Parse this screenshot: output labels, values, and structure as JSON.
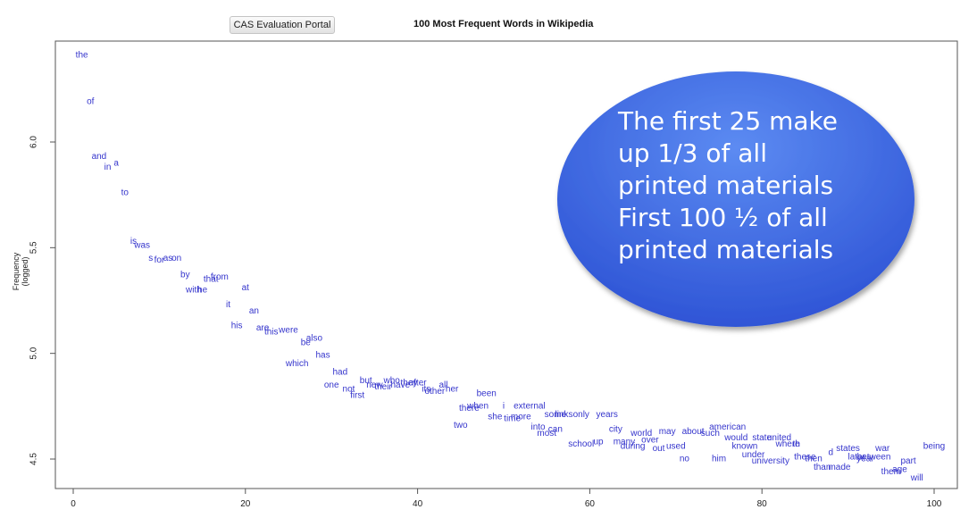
{
  "toolbar": {
    "portal_label": "CAS Evaluation Portal"
  },
  "callout": {
    "lines": [
      "The first 25 make",
      "up 1/3 of all",
      "printed materials",
      "First 100 ½ of all",
      "printed materials"
    ],
    "fill_color": "#2f55d6"
  },
  "chart_data": {
    "type": "scatter",
    "title": "100 Most Frequent Words in Wikipedia",
    "xlabel": "",
    "ylabel": "Frequency (logged)",
    "xlim": [
      0,
      100
    ],
    "ylim": [
      4.45,
      6.45
    ],
    "xticks": [
      0,
      20,
      40,
      60,
      80,
      100
    ],
    "yticks": [
      4.5,
      5.0,
      5.5,
      6.0
    ],
    "grid": false,
    "label_color": "#3535cc",
    "points": [
      {
        "w": "the",
        "x": 1,
        "y": 6.41
      },
      {
        "w": "of",
        "x": 2,
        "y": 6.19
      },
      {
        "w": "and",
        "x": 3,
        "y": 5.93
      },
      {
        "w": "in",
        "x": 4,
        "y": 5.88
      },
      {
        "w": "a",
        "x": 5,
        "y": 5.9
      },
      {
        "w": "to",
        "x": 6,
        "y": 5.76
      },
      {
        "w": "is",
        "x": 7,
        "y": 5.53
      },
      {
        "w": "was",
        "x": 8,
        "y": 5.51
      },
      {
        "w": "s",
        "x": 9,
        "y": 5.45
      },
      {
        "w": "for",
        "x": 10,
        "y": 5.44
      },
      {
        "w": "as",
        "x": 11,
        "y": 5.45
      },
      {
        "w": "on",
        "x": 12,
        "y": 5.45
      },
      {
        "w": "by",
        "x": 13,
        "y": 5.37
      },
      {
        "w": "with",
        "x": 14,
        "y": 5.3
      },
      {
        "w": "he",
        "x": 15,
        "y": 5.3
      },
      {
        "w": "that",
        "x": 16,
        "y": 5.35
      },
      {
        "w": "from",
        "x": 17,
        "y": 5.36
      },
      {
        "w": "it",
        "x": 18,
        "y": 5.23
      },
      {
        "w": "at",
        "x": 20,
        "y": 5.31
      },
      {
        "w": "his",
        "x": 19,
        "y": 5.13
      },
      {
        "w": "an",
        "x": 21,
        "y": 5.2
      },
      {
        "w": "are",
        "x": 22,
        "y": 5.12
      },
      {
        "w": "this",
        "x": 23,
        "y": 5.1
      },
      {
        "w": "were",
        "x": 25,
        "y": 5.11
      },
      {
        "w": "be",
        "x": 27,
        "y": 5.05
      },
      {
        "w": "also",
        "x": 28,
        "y": 5.07
      },
      {
        "w": "which",
        "x": 26,
        "y": 4.95
      },
      {
        "w": "has",
        "x": 29,
        "y": 4.99
      },
      {
        "w": "had",
        "x": 31,
        "y": 4.91
      },
      {
        "w": "one",
        "x": 30,
        "y": 4.85
      },
      {
        "w": "not",
        "x": 32,
        "y": 4.83
      },
      {
        "w": "first",
        "x": 33,
        "y": 4.8
      },
      {
        "w": "but",
        "x": 34,
        "y": 4.87
      },
      {
        "w": "new",
        "x": 35,
        "y": 4.85
      },
      {
        "w": "their",
        "x": 36,
        "y": 4.84
      },
      {
        "w": "who",
        "x": 37,
        "y": 4.87
      },
      {
        "w": "have",
        "x": 38,
        "y": 4.85
      },
      {
        "w": "they",
        "x": 39,
        "y": 4.86
      },
      {
        "w": "after",
        "x": 40,
        "y": 4.86
      },
      {
        "w": "its",
        "x": 41,
        "y": 4.83
      },
      {
        "w": "all",
        "x": 43,
        "y": 4.85
      },
      {
        "w": "other",
        "x": 42,
        "y": 4.82
      },
      {
        "w": "her",
        "x": 44,
        "y": 4.83
      },
      {
        "w": "been",
        "x": 48,
        "y": 4.81
      },
      {
        "w": "there",
        "x": 46,
        "y": 4.74
      },
      {
        "w": "when",
        "x": 47,
        "y": 4.75
      },
      {
        "w": "i",
        "x": 50,
        "y": 4.75
      },
      {
        "w": "external",
        "x": 53,
        "y": 4.75
      },
      {
        "w": "she",
        "x": 49,
        "y": 4.7
      },
      {
        "w": "two",
        "x": 45,
        "y": 4.66
      },
      {
        "w": "time",
        "x": 51,
        "y": 4.69
      },
      {
        "w": "more",
        "x": 52,
        "y": 4.7
      },
      {
        "w": "some",
        "x": 56,
        "y": 4.71
      },
      {
        "w": "links",
        "x": 57,
        "y": 4.71
      },
      {
        "w": "only",
        "x": 59,
        "y": 4.71
      },
      {
        "w": "years",
        "x": 62,
        "y": 4.71
      },
      {
        "w": "into",
        "x": 54,
        "y": 4.65
      },
      {
        "w": "most",
        "x": 55,
        "y": 4.62
      },
      {
        "w": "can",
        "x": 56,
        "y": 4.64
      },
      {
        "w": "school",
        "x": 59,
        "y": 4.57
      },
      {
        "w": "up",
        "x": 61,
        "y": 4.58
      },
      {
        "w": "city",
        "x": 63,
        "y": 4.64
      },
      {
        "w": "many",
        "x": 64,
        "y": 4.58
      },
      {
        "w": "world",
        "x": 66,
        "y": 4.62
      },
      {
        "w": "over",
        "x": 67,
        "y": 4.59
      },
      {
        "w": "during",
        "x": 65,
        "y": 4.56
      },
      {
        "w": "out",
        "x": 68,
        "y": 4.55
      },
      {
        "w": "may",
        "x": 69,
        "y": 4.63
      },
      {
        "w": "used",
        "x": 70,
        "y": 4.56
      },
      {
        "w": "no",
        "x": 71,
        "y": 4.5
      },
      {
        "w": "about",
        "x": 72,
        "y": 4.63
      },
      {
        "w": "such",
        "x": 74,
        "y": 4.62
      },
      {
        "w": "american",
        "x": 76,
        "y": 4.65
      },
      {
        "w": "him",
        "x": 75,
        "y": 4.5
      },
      {
        "w": "would",
        "x": 77,
        "y": 4.6
      },
      {
        "w": "known",
        "x": 78,
        "y": 4.56
      },
      {
        "w": "state",
        "x": 80,
        "y": 4.6
      },
      {
        "w": "united",
        "x": 82,
        "y": 4.6
      },
      {
        "w": "where",
        "x": 83,
        "y": 4.57
      },
      {
        "w": "th",
        "x": 84,
        "y": 4.57
      },
      {
        "w": "under",
        "x": 79,
        "y": 4.52
      },
      {
        "w": "university",
        "x": 81,
        "y": 4.49
      },
      {
        "w": "these",
        "x": 85,
        "y": 4.51
      },
      {
        "w": "then",
        "x": 86,
        "y": 4.5
      },
      {
        "w": "d",
        "x": 88,
        "y": 4.53
      },
      {
        "w": "than",
        "x": 87,
        "y": 4.46
      },
      {
        "w": "made",
        "x": 89,
        "y": 4.46
      },
      {
        "w": "states",
        "x": 90,
        "y": 4.55
      },
      {
        "w": "later",
        "x": 91,
        "y": 4.51
      },
      {
        "w": "year",
        "x": 92,
        "y": 4.5
      },
      {
        "w": "between",
        "x": 93,
        "y": 4.51
      },
      {
        "w": "war",
        "x": 94,
        "y": 4.55
      },
      {
        "w": "them",
        "x": 95,
        "y": 4.44
      },
      {
        "w": "age",
        "x": 96,
        "y": 4.45
      },
      {
        "w": "part",
        "x": 97,
        "y": 4.49
      },
      {
        "w": "will",
        "x": 98,
        "y": 4.41
      },
      {
        "w": "being",
        "x": 100,
        "y": 4.56
      }
    ]
  }
}
